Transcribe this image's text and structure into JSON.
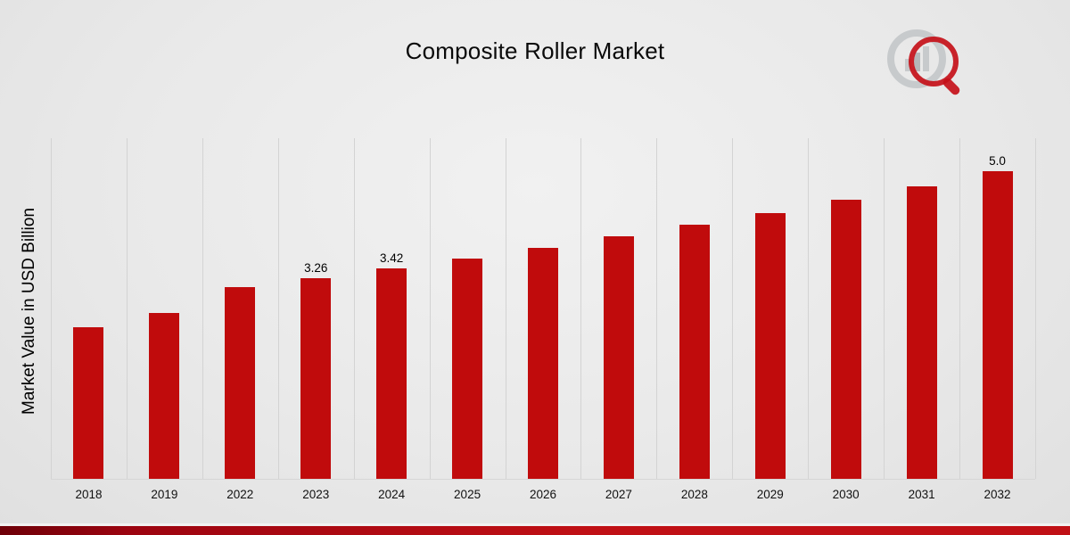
{
  "chart_data": {
    "type": "bar",
    "title": "Composite Roller Market",
    "ylabel": "Market Value in USD Billion",
    "categories": [
      "2018",
      "2019",
      "2022",
      "2023",
      "2024",
      "2025",
      "2026",
      "2027",
      "2028",
      "2029",
      "2030",
      "2031",
      "2032"
    ],
    "values": [
      2.46,
      2.7,
      3.11,
      3.26,
      3.42,
      3.58,
      3.76,
      3.94,
      4.13,
      4.32,
      4.53,
      4.75,
      5.0
    ],
    "data_labels": [
      "",
      "",
      "",
      "3.26",
      "3.42",
      "",
      "",
      "",
      "",
      "",
      "",
      "",
      "5.0"
    ],
    "bar_color": "#c00b0c",
    "ylim": [
      0,
      5.55
    ],
    "grid": "vertical",
    "legend": "none"
  },
  "branding": {
    "logo": "magnifier-bar-chart-logo",
    "accent_colors": [
      "#6e0008",
      "#c01015"
    ],
    "logo_gray": "#c7cacc",
    "logo_red": "#c41019"
  }
}
